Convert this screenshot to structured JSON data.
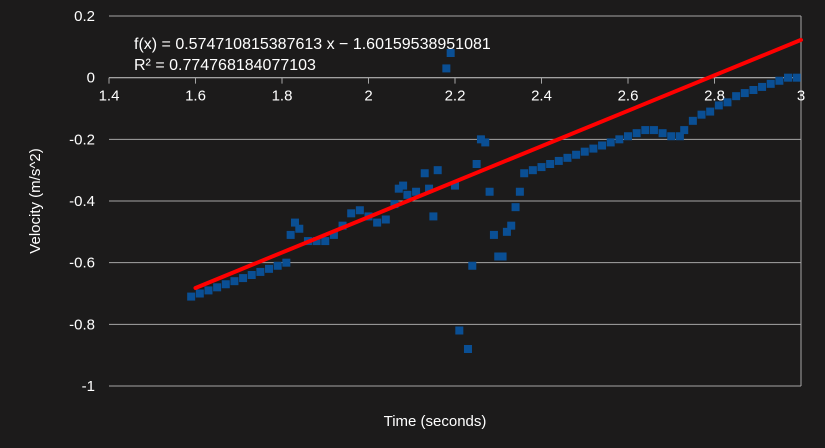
{
  "chart_data": {
    "type": "scatter",
    "title": "",
    "xlabel": "Time (seconds)",
    "ylabel": "Velocity (m/s^2)",
    "xlim": [
      1.4,
      3
    ],
    "ylim": [
      -1,
      0.2
    ],
    "x_ticks": [
      1.4,
      1.6,
      1.8,
      2,
      2.2,
      2.4,
      2.6,
      2.8,
      3
    ],
    "x_tick_labels": [
      "1.4",
      "1.6",
      "1.8",
      "2",
      "2.2",
      "2.4",
      "2.6",
      "2.8",
      "3"
    ],
    "y_ticks": [
      0.2,
      0,
      -0.2,
      -0.4,
      -0.6,
      -0.8,
      -1
    ],
    "y_tick_labels": [
      "0.2",
      "0",
      "-0.2",
      "-0.4",
      "-0.6",
      "-0.8",
      "-1"
    ],
    "grid": true,
    "colors": {
      "background": "#1c1b1b",
      "grid": "#a6a6a6",
      "points": "#0a4f94",
      "trend": "#ff0000",
      "text": "#ffffff"
    },
    "series": [
      {
        "points": [
          [
            1.59,
            -0.71
          ],
          [
            1.61,
            -0.7
          ],
          [
            1.63,
            -0.69
          ],
          [
            1.65,
            -0.68
          ],
          [
            1.67,
            -0.67
          ],
          [
            1.69,
            -0.66
          ],
          [
            1.71,
            -0.65
          ],
          [
            1.73,
            -0.64
          ],
          [
            1.75,
            -0.63
          ],
          [
            1.77,
            -0.62
          ],
          [
            1.79,
            -0.61
          ],
          [
            1.81,
            -0.6
          ],
          [
            1.82,
            -0.51
          ],
          [
            1.83,
            -0.47
          ],
          [
            1.84,
            -0.49
          ],
          [
            1.86,
            -0.53
          ],
          [
            1.88,
            -0.53
          ],
          [
            1.9,
            -0.53
          ],
          [
            1.92,
            -0.51
          ],
          [
            1.94,
            -0.48
          ],
          [
            1.96,
            -0.44
          ],
          [
            1.98,
            -0.43
          ],
          [
            2.0,
            -0.45
          ],
          [
            2.02,
            -0.47
          ],
          [
            2.04,
            -0.46
          ],
          [
            2.06,
            -0.41
          ],
          [
            2.07,
            -0.36
          ],
          [
            2.08,
            -0.35
          ],
          [
            2.09,
            -0.38
          ],
          [
            2.11,
            -0.37
          ],
          [
            2.13,
            -0.31
          ],
          [
            2.14,
            -0.36
          ],
          [
            2.15,
            -0.45
          ],
          [
            2.16,
            -0.3
          ],
          [
            2.18,
            0.03
          ],
          [
            2.19,
            0.08
          ],
          [
            2.2,
            -0.35
          ],
          [
            2.21,
            -0.82
          ],
          [
            2.23,
            -0.88
          ],
          [
            2.24,
            -0.61
          ],
          [
            2.25,
            -0.28
          ],
          [
            2.26,
            -0.2
          ],
          [
            2.27,
            -0.21
          ],
          [
            2.28,
            -0.37
          ],
          [
            2.29,
            -0.51
          ],
          [
            2.3,
            -0.58
          ],
          [
            2.31,
            -0.58
          ],
          [
            2.32,
            -0.5
          ],
          [
            2.33,
            -0.48
          ],
          [
            2.34,
            -0.42
          ],
          [
            2.35,
            -0.37
          ],
          [
            2.36,
            -0.31
          ],
          [
            2.38,
            -0.3
          ],
          [
            2.4,
            -0.29
          ],
          [
            2.42,
            -0.28
          ],
          [
            2.44,
            -0.27
          ],
          [
            2.46,
            -0.26
          ],
          [
            2.48,
            -0.25
          ],
          [
            2.5,
            -0.24
          ],
          [
            2.52,
            -0.23
          ],
          [
            2.54,
            -0.22
          ],
          [
            2.56,
            -0.21
          ],
          [
            2.58,
            -0.2
          ],
          [
            2.6,
            -0.19
          ],
          [
            2.62,
            -0.18
          ],
          [
            2.64,
            -0.17
          ],
          [
            2.66,
            -0.17
          ],
          [
            2.68,
            -0.18
          ],
          [
            2.7,
            -0.19
          ],
          [
            2.72,
            -0.19
          ],
          [
            2.73,
            -0.17
          ],
          [
            2.75,
            -0.14
          ],
          [
            2.77,
            -0.12
          ],
          [
            2.79,
            -0.11
          ],
          [
            2.81,
            -0.09
          ],
          [
            2.83,
            -0.08
          ],
          [
            2.85,
            -0.06
          ],
          [
            2.87,
            -0.05
          ],
          [
            2.89,
            -0.04
          ],
          [
            2.91,
            -0.03
          ],
          [
            2.93,
            -0.02
          ],
          [
            2.95,
            -0.01
          ],
          [
            2.97,
            0.0
          ],
          [
            2.99,
            0.0
          ]
        ]
      }
    ],
    "trendline": {
      "equation": "f(x) = 0.574710815387613 x − 1.60159538951081",
      "r_squared": "R² = 0.774768184077103",
      "slope": 0.574710815387613,
      "intercept": -1.60159538951081,
      "x_from": 1.6,
      "x_to": 3.0
    }
  }
}
